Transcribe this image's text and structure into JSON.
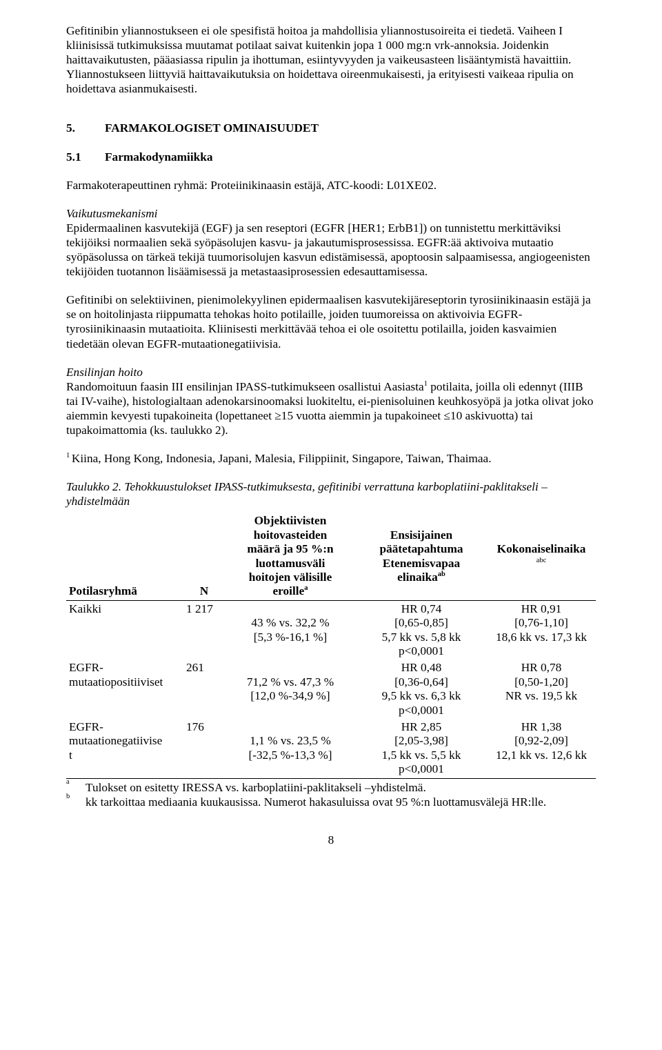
{
  "paragraphs": {
    "p1a": "Gefitinibin yliannostukseen ei ole spesifistä hoitoa ja mahdollisia yliannostusoireita ei tiedetä. Vaiheen I kliinisissä tutkimuksissa muutamat potilaat saivat kuitenkin jopa 1 000 mg:n vrk-annoksia. Joidenkin haittavaikutusten, pääasiassa ripulin ja ihottuman, esiintyvyyden ja vaikeusasteen lisääntymistä havaittiin. Yliannostukseen liittyviä haittavaikutuksia on hoidettava oireenmukaisesti, ja erityisesti vaikeaa ripulia on hoidettava asianmukaisesti.",
    "h5_num": "5.",
    "h5_text": "FARMAKOLOGISET OMINAISUUDET",
    "h51_num": "5.1",
    "h51_text": "Farmakodynamiikka",
    "p2": "Farmakoterapeuttinen ryhmä: Proteiinikinaasin estäjä, ATC-koodi: L01XE02.",
    "h_vaik": "Vaikutusmekanismi",
    "p3": "Epidermaalinen kasvutekijä (EGF) ja sen reseptori (EGFR [HER1; ErbB1]) on tunnistettu merkittäviksi tekijöiksi normaalien sekä syöpäsolujen kasvu- ja jakautumisprosessissa. EGFR:ää aktivoiva mutaatio syöpäsolussa on tärkeä tekijä tuumorisolujen kasvun edistämisessä, apoptoosin salpaamisessa, angiogeenisten tekijöiden tuotannon lisäämisessä ja metastaasiprosessien edesauttamisessa.",
    "p4": "Gefitinibi on selektiivinen, pienimolekyylinen epidermaalisen kasvutekijäreseptorin tyrosiinikinaasin estäjä ja se on hoitolinjasta riippumatta tehokas hoito potilaille, joiden tuumoreissa on aktivoivia EGFR-tyrosiinikinaasin mutaatioita. Kliinisesti merkittävää tehoa ei ole osoitettu potilailla, joiden kasvaimien tiedetään olevan EGFR-mutaationegatiivisia.",
    "h_ens": "Ensilinjan hoito",
    "p5a": "Randomoituun faasin III ensilinjan IPASS-tutkimukseen osallistui Aasiasta",
    "p5sup": "1",
    "p5b": " potilaita, joilla oli edennyt (IIIB tai IV-vaihe), histologialtaan adenokarsinoomaksi luokiteltu, ei-pienisoluinen keuhkosyöpä ja jotka olivat joko aiemmin kevyesti tupakoineita (lopettaneet ≥15 vuotta aiemmin ja tupakoineet ≤10 askivuotta) tai tupakoimattomia (ks. taulukko 2).",
    "p6sup": "1 ",
    "p6": "Kiina, Hong Kong, Indonesia, Japani, Malesia, Filippiinit, Singapore, Taiwan, Thaimaa.",
    "table_title": "Taulukko 2. Tehokkuustulokset IPASS-tutkimuksesta, gefitinibi verrattuna karboplatiini-paklitakseli –yhdistelmään"
  },
  "table": {
    "headers": {
      "c1": "Potilasryhmä",
      "c2": "N",
      "c3_l1": "Objektiivisten",
      "c3_l2": "hoitovasteiden",
      "c3_l3": "määrä ja 95 %:n",
      "c3_l4": "luottamusväli",
      "c3_l5": "hoitojen välisille",
      "c3_l6a": "eroille",
      "c3_l6sup": "a",
      "c4_l1": "Ensisijainen",
      "c4_l2": "päätetapahtuma",
      "c4_l3": "Etenemisvapaa",
      "c4_l4a": "elinaika",
      "c4_l4sup": "ab",
      "c5_l1": "Kokonaiselinaika",
      "c5_l2sup": "abc"
    },
    "rows": [
      {
        "name": "Kaikki",
        "n": "1 217",
        "c3_l1": "",
        "c3_l2": "43 % vs. 32,2 %",
        "c3_l3": "[5,3 %-16,1 %]",
        "c4_l1": "HR 0,74",
        "c4_l2": "[0,65-0,85]",
        "c4_l3": "5,7 kk vs. 5,8 kk",
        "c4_l4": "p<0,0001",
        "c5_l1": "HR 0,91",
        "c5_l2": "[0,76-1,10]",
        "c5_l3": "18,6 kk vs. 17,3 kk"
      },
      {
        "name": "EGFR-\nmutaatiopositiiviset",
        "n": "261",
        "c3_l1": "",
        "c3_l2": "71,2 % vs. 47,3 %",
        "c3_l3": "[12,0 %-34,9 %]",
        "c4_l1": "HR 0,48",
        "c4_l2": "[0,36-0,64]",
        "c4_l3": "9,5 kk vs. 6,3 kk",
        "c4_l4": "p<0,0001",
        "c5_l1": "HR 0,78",
        "c5_l2": "[0,50-1,20]",
        "c5_l3": "NR vs. 19,5 kk"
      },
      {
        "name": "EGFR-\nmutaationegatiivise\nt",
        "n": "176",
        "c3_l1": "",
        "c3_l2": "1,1 % vs. 23,5 %",
        "c3_l3": "[-32,5 %-13,3 %]",
        "c4_l1": "HR 2,85",
        "c4_l2": "[2,05-3,98]",
        "c4_l3": "1,5 kk vs. 5,5 kk",
        "c4_l4": "p<0,0001",
        "c5_l1": "HR 1,38",
        "c5_l2": "[0,92-2,09]",
        "c5_l3": "12,1 kk vs. 12,6 kk"
      }
    ],
    "footnotes": {
      "a_key": "a",
      "a_text": "Tulokset on esitetty IRESSA vs. karboplatiini-paklitakseli –yhdistelmä.",
      "b_key": "b",
      "b_text": "kk tarkoittaa mediaania kuukausissa. Numerot hakasuluissa ovat 95 %:n luottamusvälejä HR:lle."
    }
  },
  "page_number": "8"
}
